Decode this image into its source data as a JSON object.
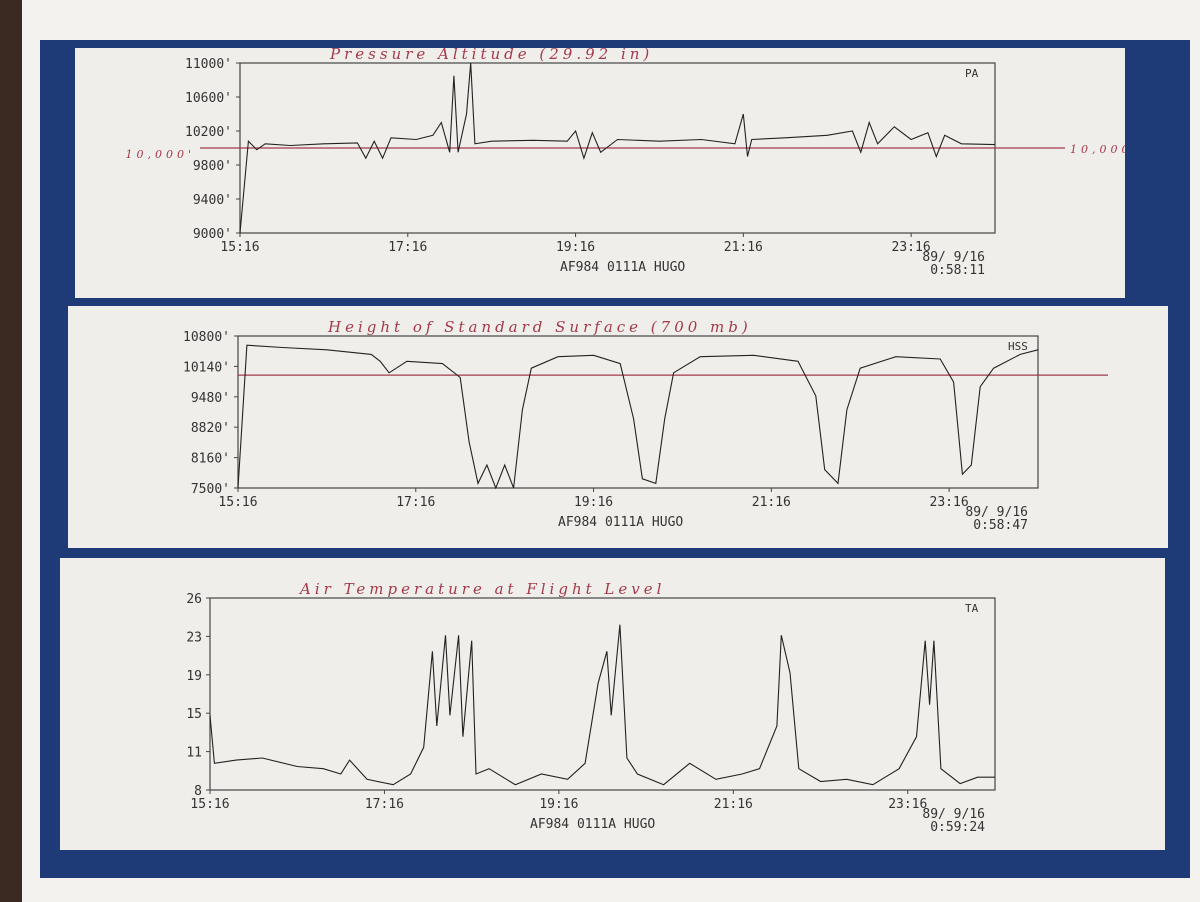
{
  "chart_data": [
    {
      "type": "line",
      "id": "pa",
      "title": "Pressure Altitude  (29.92 in)",
      "code": "PA",
      "ylabels": [
        "11000'",
        "10600'",
        "10200'",
        "9800'",
        "9400'",
        "9000'"
      ],
      "ylim": [
        9000,
        11000
      ],
      "xlabels": [
        "15:16",
        "17:16",
        "19:16",
        "21:16",
        "23:16"
      ],
      "xlim_hours_since_1516": [
        0,
        9
      ],
      "ref_value": 10000,
      "ref_label_left": "10,000'",
      "ref_label_right": "10,000",
      "footer": "AF984 0111A HUGO",
      "date": "89/ 9/16",
      "time": "0:58:11",
      "series": [
        [
          0,
          9000
        ],
        [
          0.1,
          10080
        ],
        [
          0.2,
          9980
        ],
        [
          0.3,
          10050
        ],
        [
          0.6,
          10030
        ],
        [
          1.0,
          10050
        ],
        [
          1.4,
          10060
        ],
        [
          1.5,
          9880
        ],
        [
          1.6,
          10080
        ],
        [
          1.7,
          9880
        ],
        [
          1.8,
          10120
        ],
        [
          2.1,
          10100
        ],
        [
          2.3,
          10150
        ],
        [
          2.4,
          10300
        ],
        [
          2.5,
          9950
        ],
        [
          2.55,
          10850
        ],
        [
          2.6,
          9950
        ],
        [
          2.7,
          10400
        ],
        [
          2.75,
          11000
        ],
        [
          2.8,
          10050
        ],
        [
          3.0,
          10080
        ],
        [
          3.5,
          10090
        ],
        [
          3.9,
          10080
        ],
        [
          4.0,
          10200
        ],
        [
          4.1,
          9880
        ],
        [
          4.2,
          10180
        ],
        [
          4.3,
          9950
        ],
        [
          4.5,
          10100
        ],
        [
          5.0,
          10080
        ],
        [
          5.5,
          10100
        ],
        [
          5.9,
          10050
        ],
        [
          6.0,
          10400
        ],
        [
          6.05,
          9900
        ],
        [
          6.1,
          10100
        ],
        [
          6.5,
          10120
        ],
        [
          7.0,
          10150
        ],
        [
          7.3,
          10200
        ],
        [
          7.4,
          9950
        ],
        [
          7.5,
          10300
        ],
        [
          7.6,
          10050
        ],
        [
          7.8,
          10250
        ],
        [
          8.0,
          10100
        ],
        [
          8.2,
          10180
        ],
        [
          8.3,
          9900
        ],
        [
          8.4,
          10150
        ],
        [
          8.6,
          10050
        ],
        [
          9.0,
          10040
        ]
      ]
    },
    {
      "type": "line",
      "id": "hss",
      "title": "Height of Standard Surface (700 mb)",
      "code": "HSS",
      "ylabels": [
        "10800'",
        "10140'",
        "9480'",
        "8820'",
        "8160'",
        "7500'"
      ],
      "ylim": [
        7500,
        10800
      ],
      "xlabels": [
        "15:16",
        "17:16",
        "19:16",
        "21:16",
        "23:16"
      ],
      "xlim_hours_since_1516": [
        0,
        9
      ],
      "ref_value": 9950,
      "footer": "AF984 0111A HUGO",
      "date": "89/ 9/16",
      "time": "0:58:47",
      "series": [
        [
          0,
          7500
        ],
        [
          0.1,
          10600
        ],
        [
          0.5,
          10550
        ],
        [
          1.0,
          10500
        ],
        [
          1.5,
          10400
        ],
        [
          1.6,
          10250
        ],
        [
          1.7,
          10000
        ],
        [
          1.9,
          10250
        ],
        [
          2.3,
          10200
        ],
        [
          2.5,
          9900
        ],
        [
          2.6,
          8500
        ],
        [
          2.7,
          7600
        ],
        [
          2.8,
          8000
        ],
        [
          2.9,
          7500
        ],
        [
          3.0,
          8000
        ],
        [
          3.1,
          7500
        ],
        [
          3.2,
          9200
        ],
        [
          3.3,
          10100
        ],
        [
          3.6,
          10350
        ],
        [
          4.0,
          10380
        ],
        [
          4.3,
          10200
        ],
        [
          4.45,
          9000
        ],
        [
          4.55,
          7700
        ],
        [
          4.7,
          7600
        ],
        [
          4.8,
          9000
        ],
        [
          4.9,
          10000
        ],
        [
          5.2,
          10350
        ],
        [
          5.8,
          10380
        ],
        [
          6.3,
          10250
        ],
        [
          6.5,
          9500
        ],
        [
          6.6,
          7900
        ],
        [
          6.75,
          7600
        ],
        [
          6.85,
          9200
        ],
        [
          7.0,
          10100
        ],
        [
          7.4,
          10350
        ],
        [
          7.9,
          10300
        ],
        [
          8.05,
          9800
        ],
        [
          8.15,
          7800
        ],
        [
          8.25,
          8000
        ],
        [
          8.35,
          9700
        ],
        [
          8.5,
          10100
        ],
        [
          8.8,
          10400
        ],
        [
          9.0,
          10500
        ]
      ]
    },
    {
      "type": "line",
      "id": "ta",
      "title": "Air Temperature at Flight Level",
      "code": "TA",
      "ylabels": [
        "26",
        "23",
        "19",
        "15",
        "11",
        "8"
      ],
      "ylim": [
        8,
        26
      ],
      "xlabels": [
        "15:16",
        "17:16",
        "19:16",
        "21:16",
        "23:16"
      ],
      "xlim_hours_since_1516": [
        0,
        9
      ],
      "footer": "AF984 0111A HUGO",
      "date": "89/ 9/16",
      "time": "0:59:24",
      "series": [
        [
          0,
          15
        ],
        [
          0.05,
          10.5
        ],
        [
          0.3,
          10.8
        ],
        [
          0.6,
          11
        ],
        [
          1.0,
          10.2
        ],
        [
          1.3,
          10
        ],
        [
          1.5,
          9.5
        ],
        [
          1.6,
          10.8
        ],
        [
          1.8,
          9
        ],
        [
          2.1,
          8.5
        ],
        [
          2.3,
          9.5
        ],
        [
          2.45,
          12
        ],
        [
          2.55,
          21
        ],
        [
          2.6,
          14
        ],
        [
          2.7,
          22.5
        ],
        [
          2.75,
          15
        ],
        [
          2.85,
          22.5
        ],
        [
          2.9,
          13
        ],
        [
          3.0,
          22
        ],
        [
          3.05,
          9.5
        ],
        [
          3.2,
          10
        ],
        [
          3.5,
          8.5
        ],
        [
          3.8,
          9.5
        ],
        [
          4.1,
          9
        ],
        [
          4.3,
          10.5
        ],
        [
          4.45,
          18
        ],
        [
          4.55,
          21
        ],
        [
          4.6,
          15
        ],
        [
          4.7,
          23.5
        ],
        [
          4.78,
          11
        ],
        [
          4.9,
          9.5
        ],
        [
          5.2,
          8.5
        ],
        [
          5.5,
          10.5
        ],
        [
          5.8,
          9
        ],
        [
          6.1,
          9.5
        ],
        [
          6.3,
          10
        ],
        [
          6.5,
          14
        ],
        [
          6.55,
          22.5
        ],
        [
          6.65,
          19
        ],
        [
          6.75,
          10
        ],
        [
          7.0,
          8.8
        ],
        [
          7.3,
          9
        ],
        [
          7.6,
          8.5
        ],
        [
          7.9,
          10
        ],
        [
          8.1,
          13
        ],
        [
          8.2,
          22
        ],
        [
          8.25,
          16
        ],
        [
          8.3,
          22
        ],
        [
          8.38,
          10
        ],
        [
          8.6,
          8.6
        ],
        [
          8.8,
          9.2
        ],
        [
          9.0,
          9.2
        ]
      ]
    }
  ]
}
